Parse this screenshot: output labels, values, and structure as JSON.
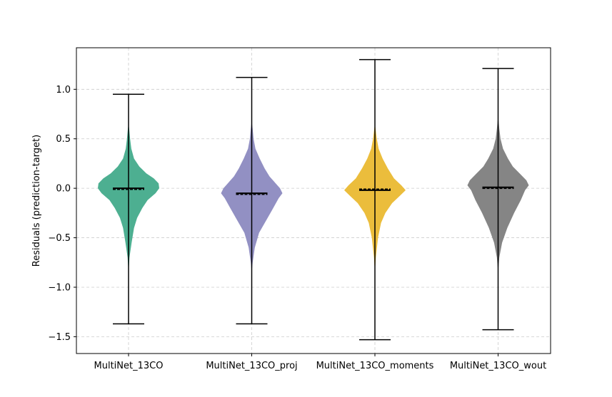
{
  "chart_data": {
    "type": "violin",
    "title": "",
    "xlabel": "",
    "ylabel": "Residuals (prediction-target)",
    "ylim": [
      -1.67,
      1.42
    ],
    "yticks": [
      1.0,
      0.5,
      0.0,
      -0.5,
      -1.0,
      -1.5
    ],
    "ytick_labels": [
      "1.0",
      "0.5",
      "0.0",
      "−0.5",
      "−1.0",
      "−1.5"
    ],
    "grid": true,
    "categories": [
      "MultiNet_13CO",
      "MultiNet_13CO_proj",
      "MultiNet_13CO_moments",
      "MultiNet_13CO_wout"
    ],
    "series": [
      {
        "color": "#4daf91",
        "min": -1.37,
        "max": 0.95,
        "mean": 0.0,
        "median": -0.01,
        "density": [
          [
            -0.85,
            0.0
          ],
          [
            -0.7,
            0.03
          ],
          [
            -0.55,
            0.1
          ],
          [
            -0.4,
            0.18
          ],
          [
            -0.3,
            0.28
          ],
          [
            -0.2,
            0.45
          ],
          [
            -0.12,
            0.62
          ],
          [
            -0.05,
            0.88
          ],
          [
            0.0,
            1.0
          ],
          [
            0.05,
            0.98
          ],
          [
            0.1,
            0.82
          ],
          [
            0.15,
            0.58
          ],
          [
            0.22,
            0.35
          ],
          [
            0.3,
            0.18
          ],
          [
            0.4,
            0.09
          ],
          [
            0.5,
            0.05
          ],
          [
            0.6,
            0.02
          ],
          [
            0.65,
            0.0
          ]
        ]
      },
      {
        "color": "#9290c3",
        "min": -1.37,
        "max": 1.12,
        "mean": -0.05,
        "median": -0.06,
        "density": [
          [
            -0.85,
            0.0
          ],
          [
            -0.75,
            0.03
          ],
          [
            -0.6,
            0.1
          ],
          [
            -0.45,
            0.24
          ],
          [
            -0.32,
            0.48
          ],
          [
            -0.2,
            0.7
          ],
          [
            -0.1,
            0.88
          ],
          [
            -0.05,
            1.0
          ],
          [
            0.0,
            0.92
          ],
          [
            0.05,
            0.78
          ],
          [
            0.12,
            0.58
          ],
          [
            0.2,
            0.42
          ],
          [
            0.3,
            0.26
          ],
          [
            0.4,
            0.12
          ],
          [
            0.5,
            0.06
          ],
          [
            0.6,
            0.03
          ],
          [
            0.68,
            0.0
          ]
        ]
      },
      {
        "color": "#ebbd3c",
        "min": -1.53,
        "max": 1.3,
        "mean": -0.02,
        "median": -0.01,
        "density": [
          [
            -0.85,
            0.0
          ],
          [
            -0.7,
            0.03
          ],
          [
            -0.5,
            0.1
          ],
          [
            -0.35,
            0.2
          ],
          [
            -0.25,
            0.34
          ],
          [
            -0.15,
            0.56
          ],
          [
            -0.08,
            0.8
          ],
          [
            -0.02,
            1.0
          ],
          [
            0.03,
            0.86
          ],
          [
            0.1,
            0.62
          ],
          [
            0.2,
            0.42
          ],
          [
            0.3,
            0.25
          ],
          [
            0.4,
            0.12
          ],
          [
            0.5,
            0.06
          ],
          [
            0.6,
            0.02
          ],
          [
            0.65,
            0.0
          ]
        ]
      },
      {
        "color": "#858585",
        "min": -1.43,
        "max": 1.21,
        "mean": 0.01,
        "median": 0.0,
        "density": [
          [
            -0.85,
            0.0
          ],
          [
            -0.7,
            0.04
          ],
          [
            -0.55,
            0.13
          ],
          [
            -0.4,
            0.3
          ],
          [
            -0.25,
            0.52
          ],
          [
            -0.12,
            0.74
          ],
          [
            -0.02,
            0.88
          ],
          [
            0.03,
            1.0
          ],
          [
            0.08,
            0.92
          ],
          [
            0.15,
            0.7
          ],
          [
            0.22,
            0.48
          ],
          [
            0.3,
            0.32
          ],
          [
            0.4,
            0.16
          ],
          [
            0.5,
            0.08
          ],
          [
            0.6,
            0.04
          ],
          [
            0.7,
            0.01
          ],
          [
            0.75,
            0.0
          ]
        ]
      }
    ]
  }
}
